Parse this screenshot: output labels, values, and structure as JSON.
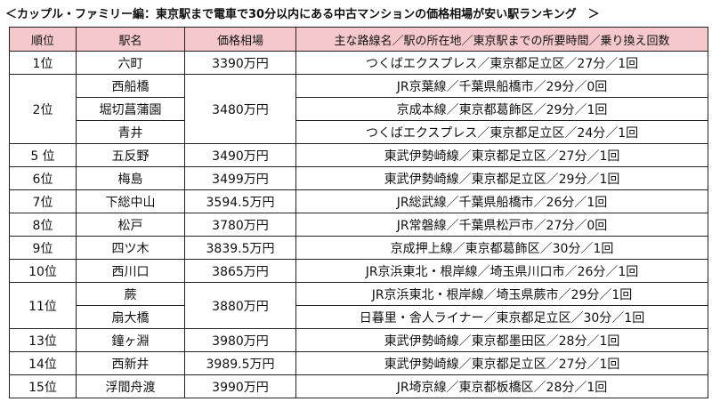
{
  "title": "＜カップル・ファミリー編：東京駅まで電車で30分以内にある中古マンションの価格相場が安い駅ランキング　＞",
  "colors": {
    "header_bg": "#f5c9cc",
    "border": "#222222",
    "text": "#111111"
  },
  "table": {
    "headers": [
      "順位",
      "駅名",
      "価格相場",
      "主な路線名／駅の所在地／東京駅までの所要時間／乗り換え回数"
    ],
    "groups": [
      {
        "rank": "1位",
        "price": "3390万円",
        "stations": [
          {
            "name": "六町",
            "route": "つくばエクスプレス／東京都足立区／27分／1回"
          }
        ]
      },
      {
        "rank": "2位",
        "price": "3480万円",
        "stations": [
          {
            "name": "西船橋",
            "route": "JR京葉線／千葉県船橋市／29分／0回"
          },
          {
            "name": "堀切菖蒲園",
            "route": "京成本線／東京都葛飾区／29分／1回"
          },
          {
            "name": "青井",
            "route": "つくばエクスプレス／東京都足立区／24分／1回"
          }
        ]
      },
      {
        "rank": "5 位",
        "price": "3490万円",
        "stations": [
          {
            "name": "五反野",
            "route": "東武伊勢崎線／東京都足立区／27分／1回"
          }
        ]
      },
      {
        "rank": "6位",
        "price": "3499万円",
        "stations": [
          {
            "name": "梅島",
            "route": "東武伊勢崎線／東京都足立区／29分／1回"
          }
        ]
      },
      {
        "rank": "7位",
        "price": "3594.5万円",
        "stations": [
          {
            "name": "下総中山",
            "route": "JR総武線／千葉県船橋市／26分／1回"
          }
        ]
      },
      {
        "rank": "8位",
        "price": "3780万円",
        "stations": [
          {
            "name": "松戸",
            "route": "JR常磐線／千葉県松戸市／27分／0回"
          }
        ]
      },
      {
        "rank": "9位",
        "price": "3839.5万円",
        "stations": [
          {
            "name": "四ツ木",
            "route": "京成押上線／東京都葛飾区／30分／1回"
          }
        ]
      },
      {
        "rank": "10位",
        "price": "3865万円",
        "stations": [
          {
            "name": "西川口",
            "route": "JR京浜東北・根岸線／埼玉県川口市／26分／1回"
          }
        ]
      },
      {
        "rank": "11位",
        "price": "3880万円",
        "stations": [
          {
            "name": "蕨",
            "route": "JR京浜東北・根岸線／埼玉県蕨市／29分／1回"
          },
          {
            "name": "扇大橋",
            "route": "日暮里・舎人ライナー／東京都足立区／30分／1回"
          }
        ]
      },
      {
        "rank": "13位",
        "price": "3980万円",
        "stations": [
          {
            "name": "鐘ヶ淵",
            "route": "東武伊勢崎線／東京都墨田区／28分／1回"
          }
        ]
      },
      {
        "rank": "14位",
        "price": "3989.5万円",
        "stations": [
          {
            "name": "西新井",
            "route": "東武伊勢崎線／東京都足立区／27分／1回"
          }
        ]
      },
      {
        "rank": "15位",
        "price": "3990万円",
        "stations": [
          {
            "name": "浮間舟渡",
            "route": "JR埼京線／東京都板橋区／28分／1回"
          }
        ]
      }
    ]
  }
}
